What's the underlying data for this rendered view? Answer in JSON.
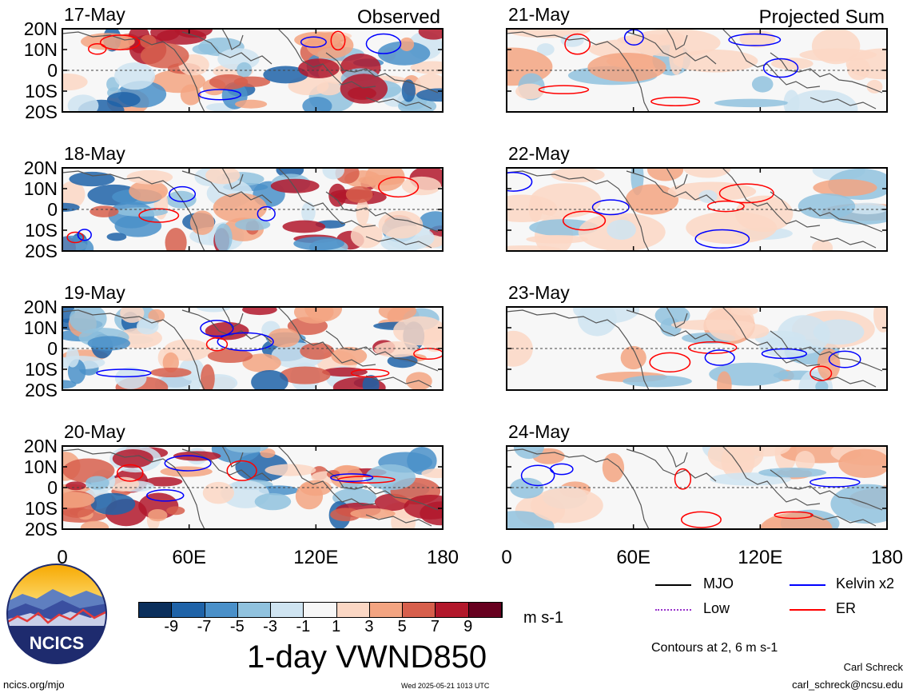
{
  "chart_data": {
    "type": "heatmap",
    "title": "1-day VWND850",
    "units": "m s-1",
    "note": "Contours at 2, 6 m s-1",
    "columns": [
      {
        "heading": "Observed",
        "panels": [
          "17-May",
          "18-May",
          "19-May",
          "20-May"
        ]
      },
      {
        "heading": "Projected Sum",
        "panels": [
          "21-May",
          "22-May",
          "23-May",
          "24-May"
        ]
      }
    ],
    "y_ticks": [
      "20N",
      "10N",
      "0",
      "10S",
      "20S"
    ],
    "x_ticks": [
      "0",
      "60E",
      "120E",
      "180"
    ],
    "xlim": [
      0,
      180
    ],
    "ylim": [
      -20,
      20
    ],
    "colorbar": {
      "tick_labels": [
        "-9",
        "-7",
        "-5",
        "-3",
        "-1",
        "1",
        "3",
        "5",
        "7",
        "9"
      ],
      "colors": [
        "#0b2f5c",
        "#1f63a8",
        "#4a90c9",
        "#90c2de",
        "#cfe4f1",
        "#f7f7f7",
        "#fbd7c4",
        "#f3a481",
        "#d75f4c",
        "#b2182b",
        "#67001f"
      ]
    },
    "legend": [
      {
        "label": "MJO",
        "color": "#000000"
      },
      {
        "label": "Kelvin x2",
        "color": "#0000ff"
      },
      {
        "label": "Low",
        "color": "#9932cc"
      },
      {
        "label": "ER",
        "color": "#ff0000"
      }
    ]
  },
  "footer": {
    "logo_text": "NCICS",
    "url": "ncics.org/mjo",
    "timestamp": "Wed 2025-05-21 1013 UTC",
    "author": "Carl Schreck",
    "email": "carl_schreck@ncsu.edu"
  }
}
